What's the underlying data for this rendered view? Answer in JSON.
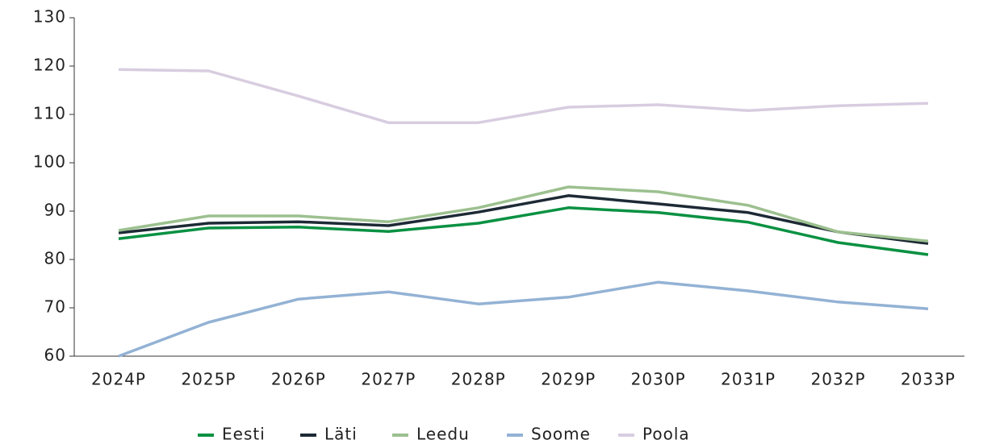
{
  "chart_data": {
    "type": "line",
    "categories": [
      "2024P",
      "2025P",
      "2026P",
      "2027P",
      "2028P",
      "2029P",
      "2030P",
      "2031P",
      "2032P",
      "2033P"
    ],
    "series": [
      {
        "name": "Eesti",
        "color": "#0a9142",
        "values": [
          84.3,
          86.5,
          86.7,
          85.8,
          87.5,
          90.7,
          89.7,
          87.7,
          83.5,
          81
        ]
      },
      {
        "name": "Läti",
        "color": "#1d2a35",
        "values": [
          85.5,
          87.5,
          87.8,
          87,
          89.8,
          93.2,
          91.5,
          89.7,
          85.7,
          83.3
        ]
      },
      {
        "name": "Leedu",
        "color": "#9cc08f",
        "values": [
          86,
          89,
          89,
          87.8,
          90.7,
          95,
          94,
          91.2,
          85.7,
          83.8
        ]
      },
      {
        "name": "Soome",
        "color": "#93b2d4",
        "values": [
          60,
          67,
          71.8,
          73.3,
          70.8,
          72.2,
          75.3,
          73.5,
          71.2,
          69.8
        ]
      },
      {
        "name": "Poola",
        "color": "#d8cde0",
        "values": [
          119.3,
          119,
          113.8,
          108.3,
          108.3,
          111.5,
          112,
          110.8,
          111.8,
          112.3
        ]
      }
    ],
    "ylim": [
      60,
      130
    ],
    "yticks": [
      60,
      70,
      80,
      90,
      100,
      110,
      120,
      130
    ],
    "grid": false,
    "legend": "bottom"
  }
}
